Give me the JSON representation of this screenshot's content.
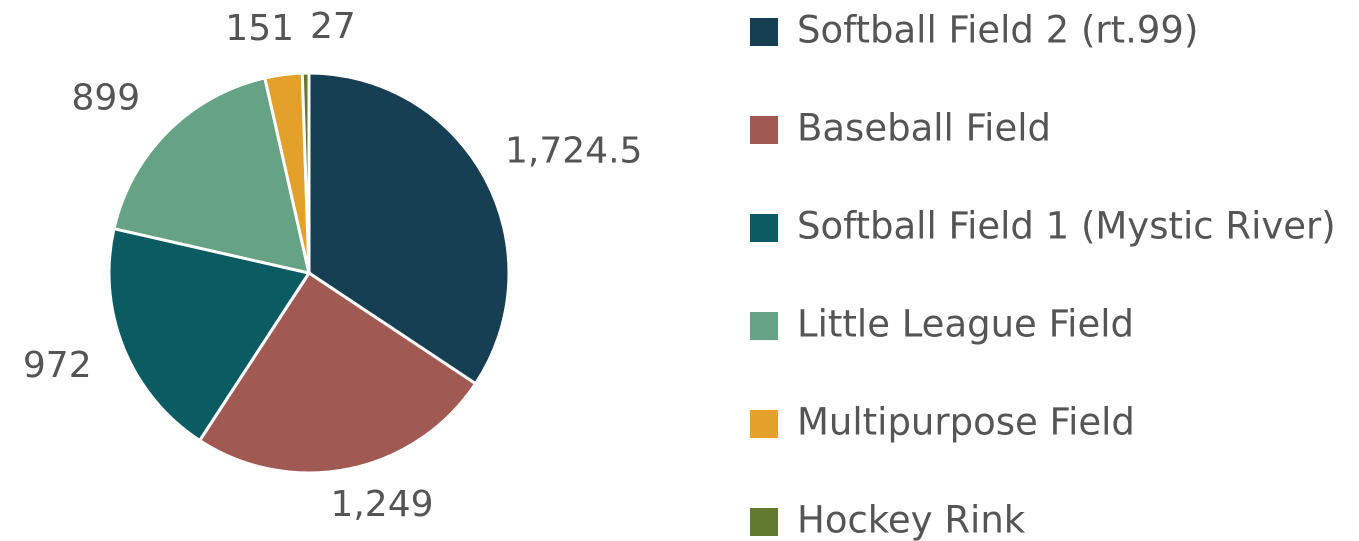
{
  "chart_data": {
    "type": "pie",
    "categories": [
      "Softball Field 2 (rt.99)",
      "Baseball Field",
      "Softball Field 1 (Mystic River)",
      "Little League Field",
      "Multipurpose Field",
      "Hockey Rink"
    ],
    "values": [
      1724.5,
      1249,
      972,
      899,
      151,
      27
    ],
    "value_labels": [
      "1,724.5",
      "1,249",
      "972",
      "899",
      "151",
      "27"
    ],
    "colors": [
      "#173f53",
      "#a05a53",
      "#0b5b62",
      "#66a385",
      "#e3a02a",
      "#627a30"
    ],
    "legend": "right"
  }
}
